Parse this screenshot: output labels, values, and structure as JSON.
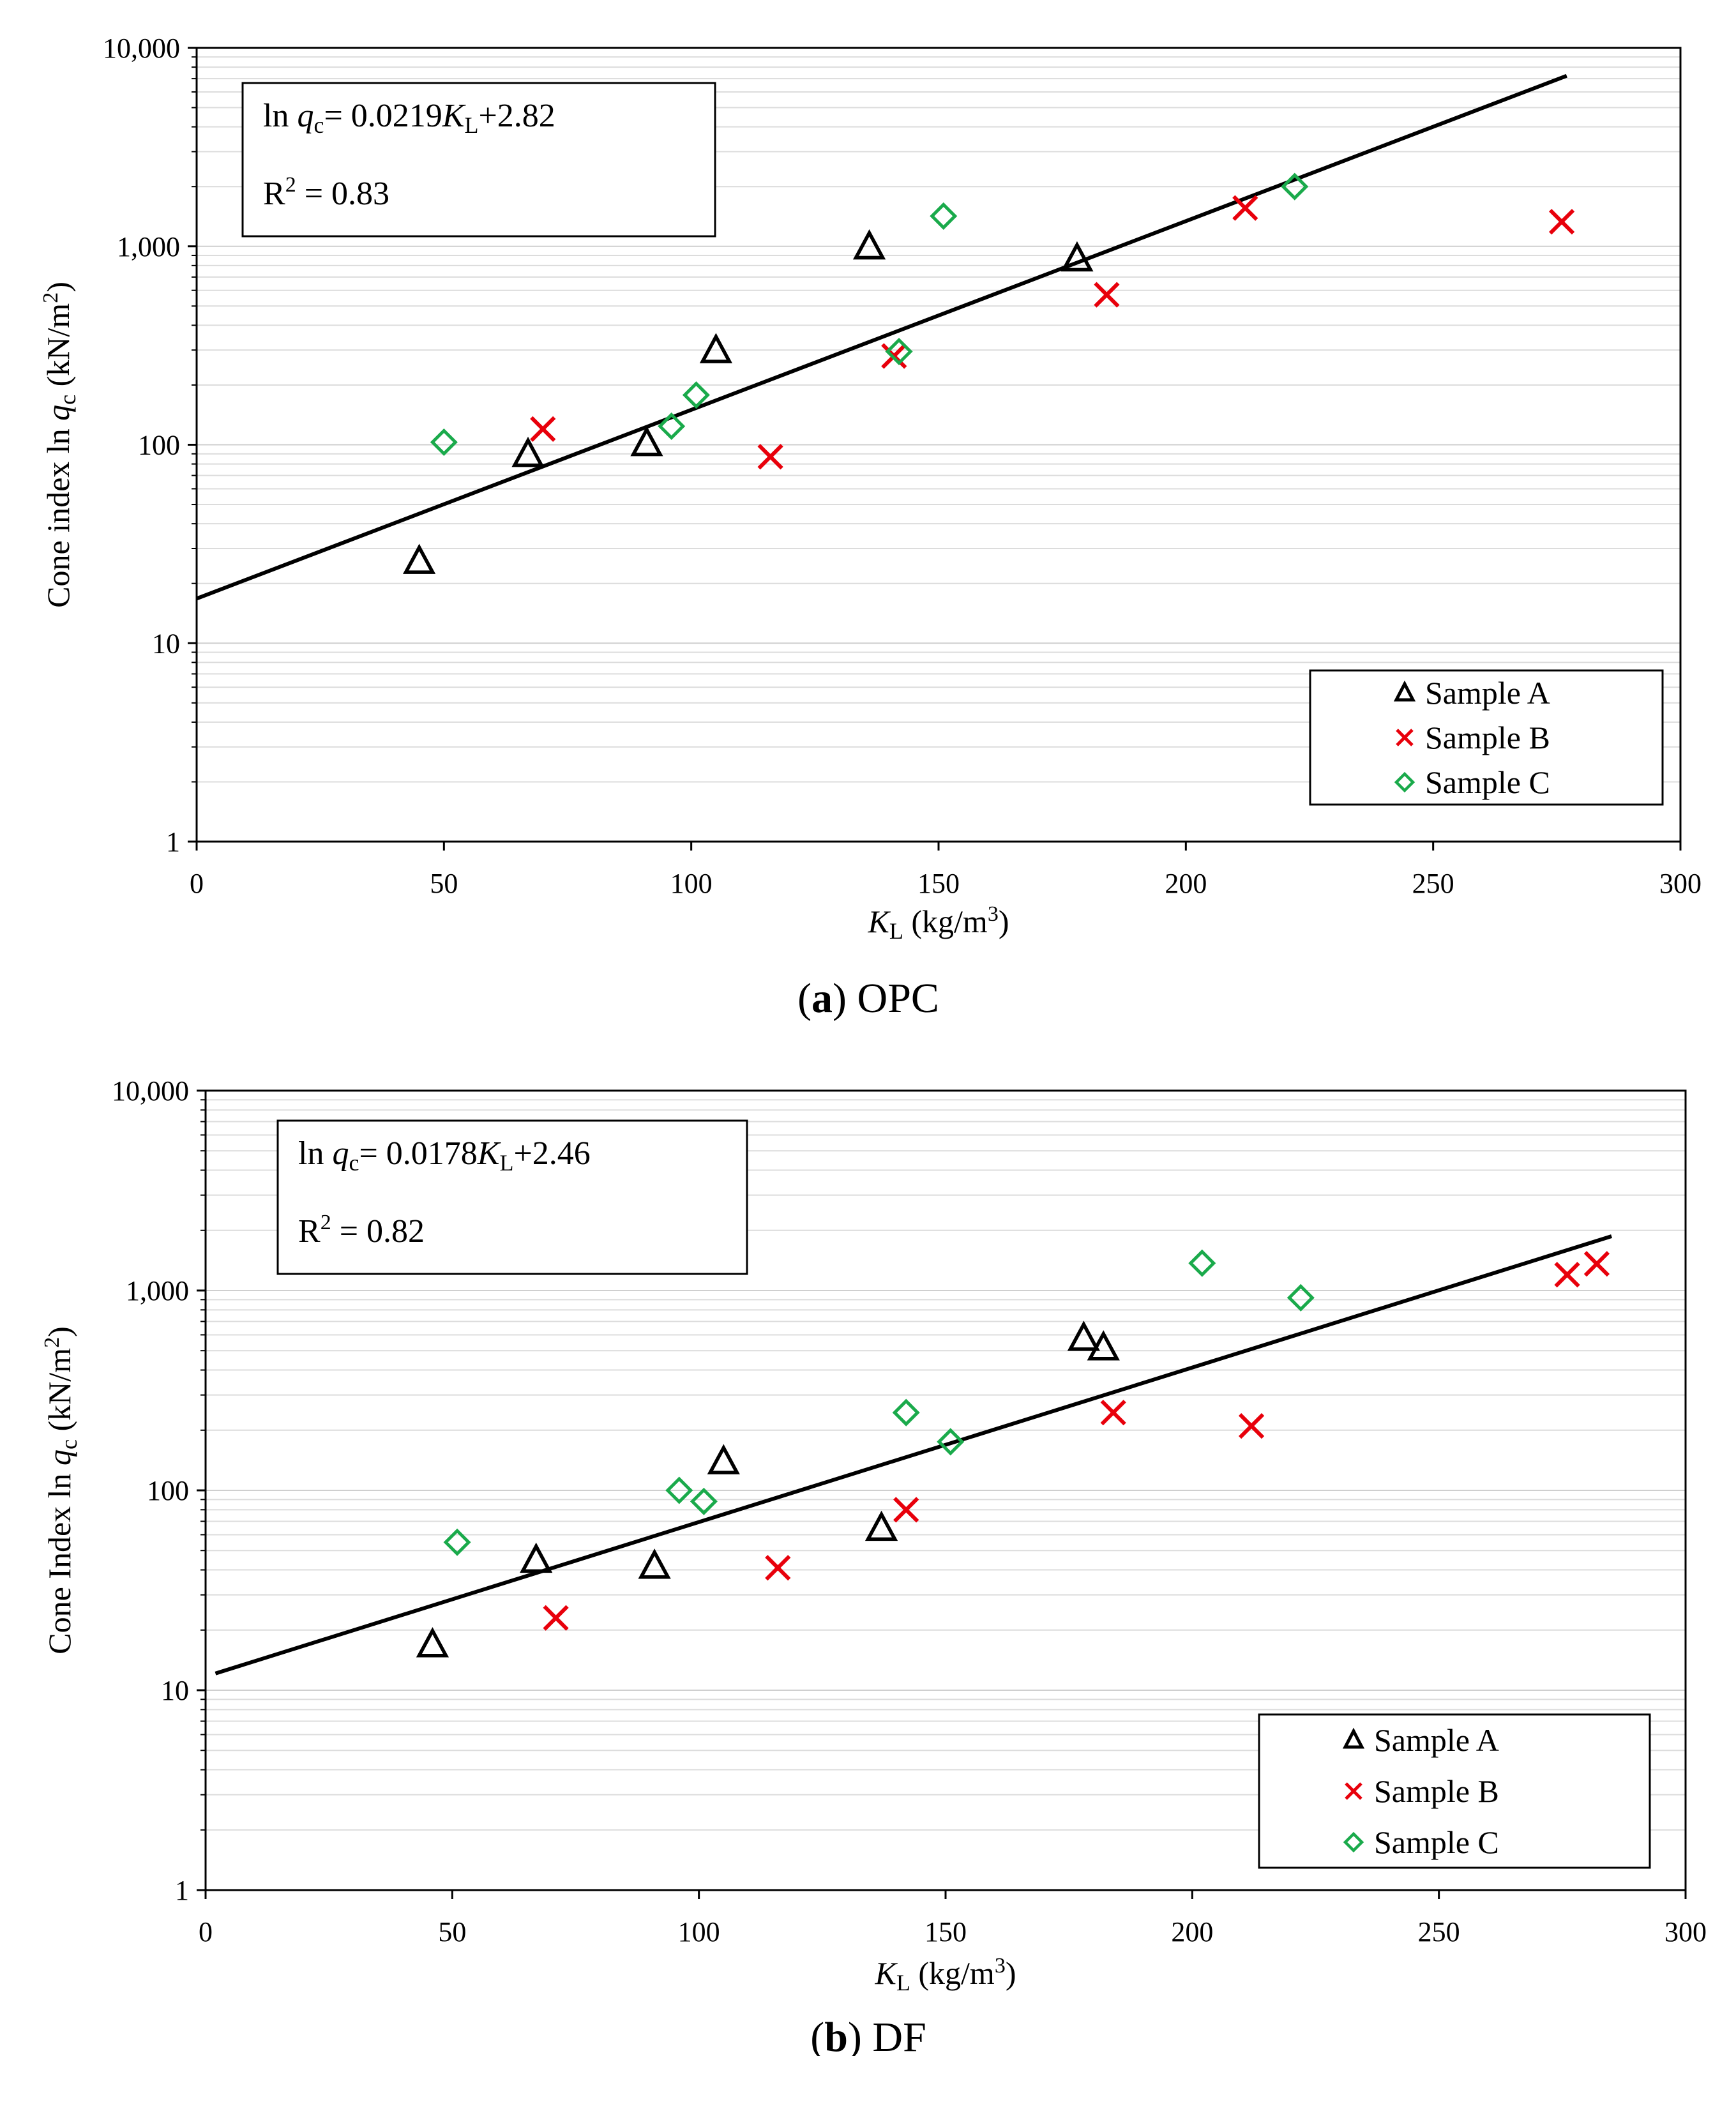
{
  "chart_data": [
    {
      "type": "scatter",
      "panel": "a",
      "caption_letter": "a",
      "caption_text": "OPC",
      "ylabel_prefix": "Cone index ln ",
      "ylabel_var": "q",
      "ylabel_sub": "c",
      "ylabel_units_pre": " (kN/m",
      "ylabel_units_sup": "2",
      "ylabel_units_post": ")",
      "xlabel_var": "K",
      "xlabel_sub": "L",
      "xlabel_units_pre": " (kg/m",
      "xlabel_units_sup": "3",
      "xlabel_units_post": ")",
      "xlim": [
        0,
        300
      ],
      "ylim": [
        1,
        10000
      ],
      "yscale": "log",
      "x_ticks": [
        "0",
        "50",
        "100",
        "150",
        "200",
        "250",
        "300"
      ],
      "y_ticks": [
        "1",
        "10",
        "100",
        "1,000",
        "10,000"
      ],
      "equation": {
        "prefix": "ln ",
        "var": "q",
        "sub": "c",
        "mid": "= 0.0219",
        "k": "K",
        "ksub": "L",
        "tail": "+2.82",
        "r2_base": "R",
        "r2_sup": "2",
        "r2_value": " = 0.83"
      },
      "trendline": {
        "slope": 0.0219,
        "intercept": 2.82,
        "x_start": 0,
        "x_end": 277
      },
      "legend": [
        "Sample A",
        "Sample B",
        "Sample C"
      ],
      "series": [
        {
          "name": "Sample A",
          "marker": "triangle",
          "color": "#000000",
          "points": [
            [
              45,
              26
            ],
            [
              67,
              90
            ],
            [
              91,
              102
            ],
            [
              105,
              300
            ],
            [
              136,
              1000
            ],
            [
              178,
              870
            ]
          ]
        },
        {
          "name": "Sample B",
          "marker": "x",
          "color": "#e8000b",
          "points": [
            [
              70,
              120
            ],
            [
              116,
              87
            ],
            [
              141,
              280
            ],
            [
              184,
              570
            ],
            [
              212,
              1560
            ],
            [
              276,
              1330
            ]
          ]
        },
        {
          "name": "Sample C",
          "marker": "diamond",
          "color": "#1aaa4b",
          "points": [
            [
              50,
              103
            ],
            [
              96,
              124
            ],
            [
              101,
              178
            ],
            [
              142,
              295
            ],
            [
              151,
              1420
            ],
            [
              222,
              2000
            ]
          ]
        }
      ]
    },
    {
      "type": "scatter",
      "panel": "b",
      "caption_letter": "b",
      "caption_text": "DF",
      "ylabel_prefix": "Cone Index ln ",
      "ylabel_var": "q",
      "ylabel_sub": "c",
      "ylabel_units_pre": " (kN/m",
      "ylabel_units_sup": "2",
      "ylabel_units_post": ")",
      "xlabel_var": "K",
      "xlabel_sub": "L",
      "xlabel_units_pre": " (kg/m",
      "xlabel_units_sup": "3",
      "xlabel_units_post": ")",
      "xlim": [
        0,
        300
      ],
      "ylim": [
        1,
        10000
      ],
      "yscale": "log",
      "x_ticks": [
        "0",
        "50",
        "100",
        "150",
        "200",
        "250",
        "300"
      ],
      "y_ticks": [
        "1",
        "10",
        "100",
        "1,000",
        "10,000"
      ],
      "equation": {
        "prefix": "ln ",
        "var": "q",
        "sub": "c",
        "mid": "= 0.0178",
        "k": "K",
        "ksub": "L",
        "tail": "+2.46",
        "r2_base": "R",
        "r2_sup": "2",
        "r2_value": " = 0.82"
      },
      "trendline": {
        "slope": 0.0178,
        "intercept": 2.46,
        "x_start": 2,
        "x_end": 285
      },
      "legend": [
        "Sample A",
        "Sample B",
        "Sample C"
      ],
      "series": [
        {
          "name": "Sample A",
          "marker": "triangle",
          "color": "#000000",
          "points": [
            [
              46,
              17
            ],
            [
              67,
              45
            ],
            [
              91,
              42
            ],
            [
              105,
              140
            ],
            [
              137,
              65
            ],
            [
              178,
              580
            ],
            [
              182,
              520
            ]
          ]
        },
        {
          "name": "Sample B",
          "marker": "x",
          "color": "#e8000b",
          "points": [
            [
              71,
              23
            ],
            [
              116,
              41
            ],
            [
              142,
              80
            ],
            [
              184,
              245
            ],
            [
              212,
              210
            ],
            [
              276,
              1200
            ],
            [
              282,
              1360
            ]
          ]
        },
        {
          "name": "Sample C",
          "marker": "diamond",
          "color": "#1aaa4b",
          "points": [
            [
              51,
              55
            ],
            [
              96,
              100
            ],
            [
              101,
              88
            ],
            [
              142,
              245
            ],
            [
              151,
              175
            ],
            [
              202,
              1370
            ],
            [
              222,
              920
            ]
          ]
        }
      ]
    }
  ]
}
